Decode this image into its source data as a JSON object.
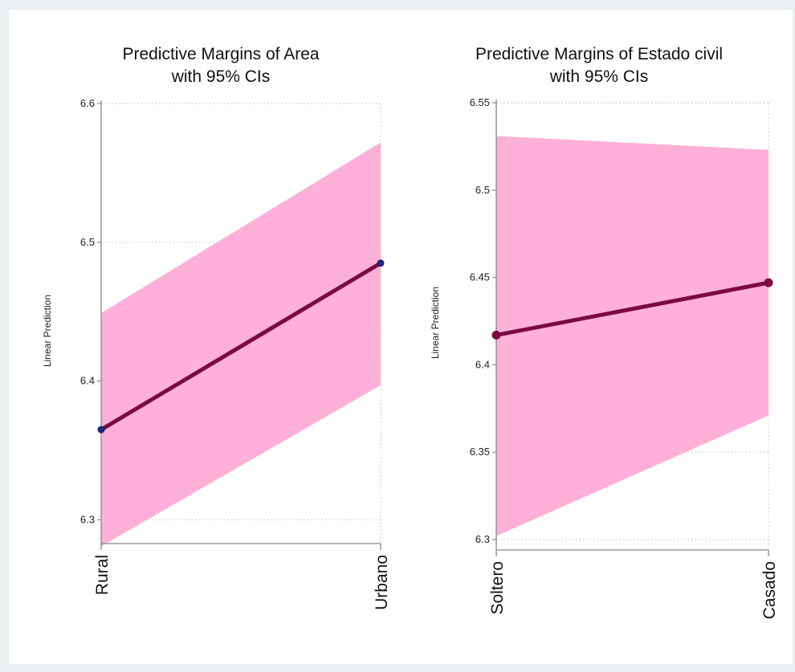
{
  "colors": {
    "page_background": "#e9eef1",
    "plot_background": "#ffffff",
    "ci_band": "#ffb0d8",
    "line": "#7b0a40",
    "marker_left": "#1f2a7a",
    "marker_right": "#7b0a40",
    "grid": "#c8c8c8",
    "axis": "#888888"
  },
  "chart_data": [
    {
      "type": "line",
      "title": "Predictive Margins of Area",
      "subtitle": "with 95% CIs",
      "ylabel": "Linear Prediction",
      "categories": [
        "Rural",
        "Urbano"
      ],
      "values": [
        6.365,
        6.485
      ],
      "ci_lower": [
        6.281,
        6.397
      ],
      "ci_upper": [
        6.449,
        6.572
      ],
      "yticks": [
        6.3,
        6.4,
        6.5,
        6.6
      ],
      "ytick_labels": [
        "6.3",
        "6.4",
        "6.5",
        "6.6"
      ],
      "ylim": [
        6.28,
        6.6
      ],
      "grid": true
    },
    {
      "type": "line",
      "title": "Predictive Margins of Estado civil",
      "subtitle": "with 95% CIs",
      "ylabel": "Linear Prediction",
      "categories": [
        "Soltero",
        "Casado"
      ],
      "values": [
        6.417,
        6.447
      ],
      "ci_lower": [
        6.302,
        6.371
      ],
      "ci_upper": [
        6.531,
        6.523
      ],
      "yticks": [
        6.3,
        6.35,
        6.4,
        6.45,
        6.5,
        6.55
      ],
      "ytick_labels": [
        "6.3",
        "6.35",
        "6.4",
        "6.45",
        "6.5",
        "6.55"
      ],
      "ylim": [
        6.3,
        6.55
      ],
      "grid": true
    }
  ]
}
